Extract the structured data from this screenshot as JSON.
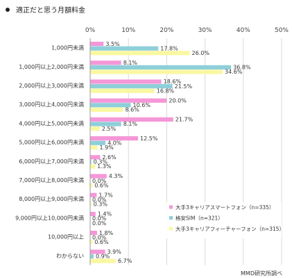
{
  "page": {
    "title": "適正だと思う月額料金"
  },
  "chart_data": {
    "type": "bar",
    "orientation": "horizontal",
    "title": "適正だと思う月額料金",
    "xlim": [
      0,
      50
    ],
    "x_ticks": [
      "0%",
      "10%",
      "20%",
      "30%",
      "40%",
      "50%"
    ],
    "categories": [
      "1,000円未満",
      "1,000円以上2,000円未満",
      "2,000円以上3,000円未満",
      "3,000円以上4,000円未満",
      "4,000円以上5,000円未満",
      "5,000円以上6,000円未満",
      "6,000円以上7,000円未満",
      "7,000円以上8,000円未満",
      "8,000円以上9,000円未満",
      "9,000円以上10,000円未満",
      "10,000円以上",
      "わからない"
    ],
    "series": [
      {
        "name": "大手3キャリアスマートフォン（n=335）",
        "color": "#f497d8",
        "values": [
          3.5,
          8.1,
          18.6,
          20.0,
          21.7,
          12.5,
          2.6,
          4.3,
          1.7,
          1.4,
          1.8,
          3.9
        ],
        "labels": [
          "3.5%",
          "8.1%",
          "18.6%",
          "20.0%",
          "21.7%",
          "12.5%",
          "2.6%",
          "4.3%",
          "1.7%",
          "1.4%",
          "1.8%",
          "3.9%"
        ]
      },
      {
        "name": "格安SIM（n=321）",
        "color": "#8ecfd9",
        "values": [
          17.8,
          36.8,
          21.5,
          10.6,
          8.1,
          4.0,
          0.3,
          0.0,
          0.0,
          0.0,
          0.0,
          0.9
        ],
        "labels": [
          "17.8%",
          "36.8%",
          "21.5%",
          "10.6%",
          "8.1%",
          "4.0%",
          "0.3%",
          "0.0%",
          "0.0%",
          "0.0%",
          "0.0%",
          "0.9%"
        ]
      },
      {
        "name": "大手3キャリアフィーチャーフォン（n=315）",
        "color": "#f9f8a2",
        "values": [
          26.0,
          34.6,
          16.8,
          8.6,
          2.5,
          1.9,
          1.3,
          0.6,
          0.3,
          0.0,
          0.6,
          6.7
        ],
        "labels": [
          "26.0%",
          "34.6%",
          "16.8%",
          "8.6%",
          "2.5%",
          "1.9%",
          "1.3%",
          "0.6%",
          "0.3%",
          "0.0%",
          "0.6%",
          "6.7%"
        ]
      }
    ],
    "legend_position": "right",
    "grid": true,
    "source": "MMD研究所調べ"
  }
}
